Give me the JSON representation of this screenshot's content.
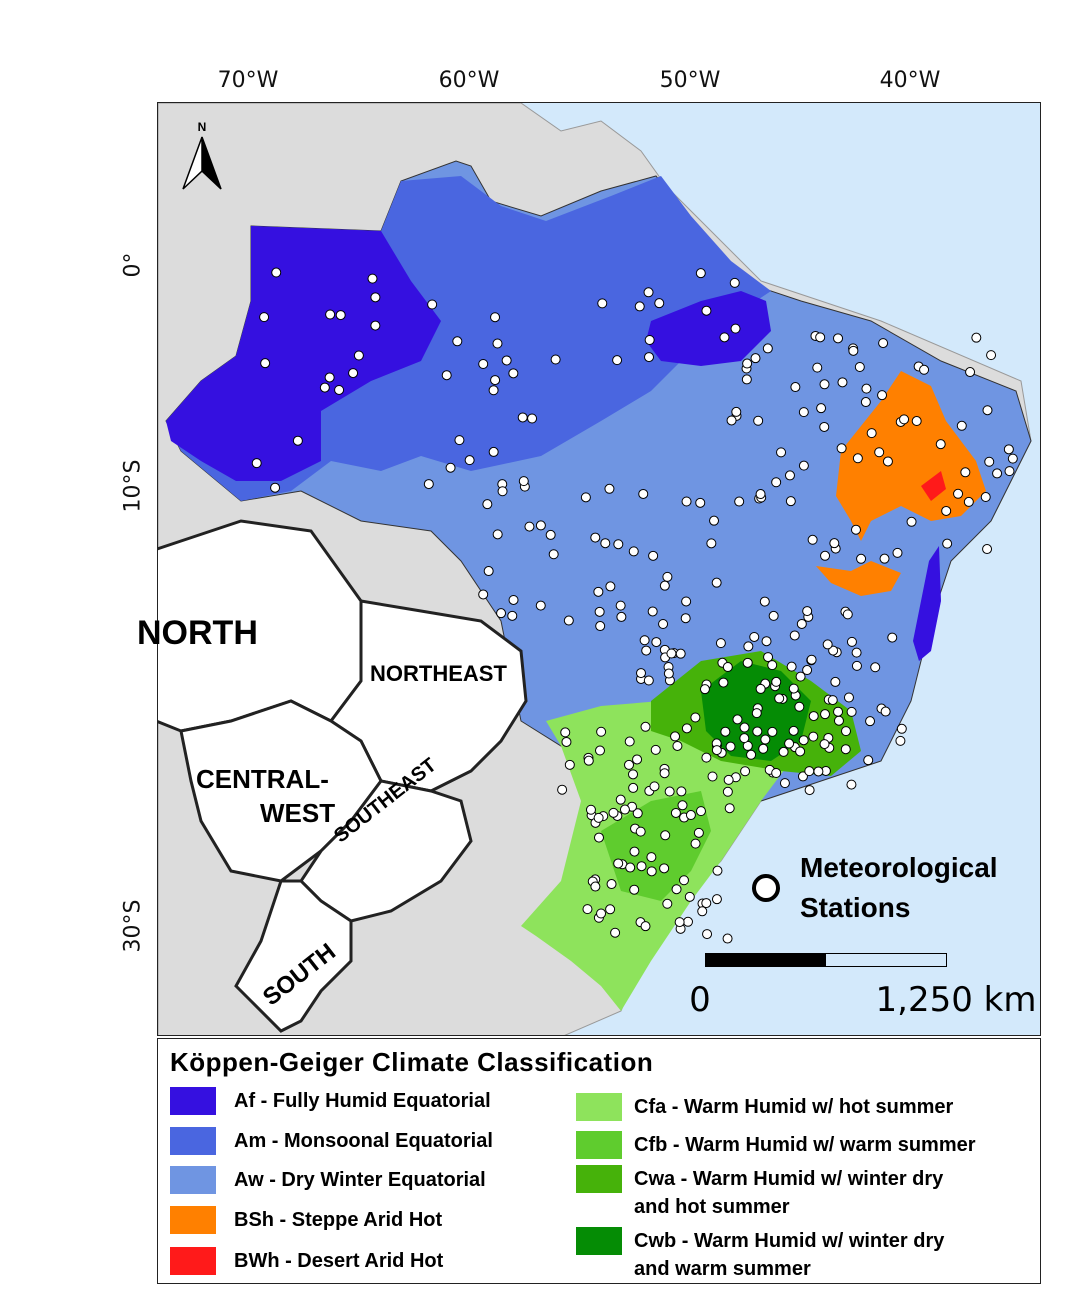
{
  "axes": {
    "longitude_ticks": [
      "70°W",
      "60°W",
      "50°W",
      "40°W"
    ],
    "latitude_ticks": [
      "0°",
      "10°S",
      "30°S"
    ]
  },
  "north_arrow": {
    "label": "N"
  },
  "regions": {
    "north": "NORTH",
    "northeast": "NORTHEAST",
    "central_west_line1": "CENTRAL-",
    "central_west_line2": "WEST",
    "southeast": "SOUTHEAST",
    "south": "SOUTH"
  },
  "stations_key": {
    "label": "Meteorological\nStations"
  },
  "scale": {
    "start": "0",
    "end": "1,250 km"
  },
  "colors": {
    "ocean": "#d3e9fb",
    "land_other": "#dcdcdc",
    "Af": "#3510e0",
    "Am": "#4a66e0",
    "Aw": "#6f95e2",
    "BSh": "#ff8000",
    "BWh": "#ff1a1a",
    "Cfa": "#8ee35c",
    "Cfb": "#5fcc2e",
    "Cwa": "#46b20a",
    "Cwb": "#058c05"
  },
  "legend": {
    "title": "Köppen-Geiger Climate Classification",
    "items": [
      {
        "code": "Af",
        "label": "Af - Fully Humid Equatorial",
        "color": "#3510e0"
      },
      {
        "code": "Am",
        "label": "Am - Monsoonal Equatorial",
        "color": "#4a66e0"
      },
      {
        "code": "Aw",
        "label": "Aw - Dry Winter Equatorial",
        "color": "#6f95e2"
      },
      {
        "code": "BSh",
        "label": "BSh - Steppe Arid Hot",
        "color": "#ff8000"
      },
      {
        "code": "BWh",
        "label": "BWh - Desert Arid Hot",
        "color": "#ff1a1a"
      },
      {
        "code": "Cfa",
        "label": "Cfa - Warm Humid w/ hot summer",
        "color": "#8ee35c"
      },
      {
        "code": "Cfb",
        "label": "Cfb - Warm Humid w/ warm summer",
        "color": "#5fcc2e"
      },
      {
        "code": "Cwa",
        "label": "Cwa - Warm Humid w/ winter dry\n        and hot summer",
        "color": "#46b20a"
      },
      {
        "code": "Cwb",
        "label": "Cwb - Warm Humid w/ winter dry\n        and warm summer",
        "color": "#058c05"
      }
    ]
  }
}
